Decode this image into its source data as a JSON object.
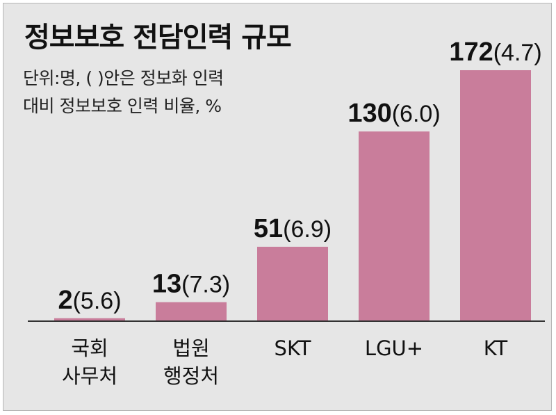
{
  "chart_data": {
    "type": "bar",
    "title": "정보보호 전담인력 규모",
    "subtitle": [
      "단위:명, (    )안은 정보화 인력",
      "대비 정보보호 인력 비율, %"
    ],
    "categories": [
      [
        "국회",
        "사무처"
      ],
      [
        "법원",
        "행정처"
      ],
      [
        "SKT"
      ],
      [
        "LGU+"
      ],
      [
        "KT"
      ]
    ],
    "values": [
      2,
      13,
      51,
      130,
      172
    ],
    "ratios": [
      "5.6",
      "7.3",
      "6.9",
      "6.0",
      "4.7"
    ],
    "ylim": [
      0,
      172
    ],
    "bar_color": "#c97d9b",
    "axis_color": "#333333"
  }
}
